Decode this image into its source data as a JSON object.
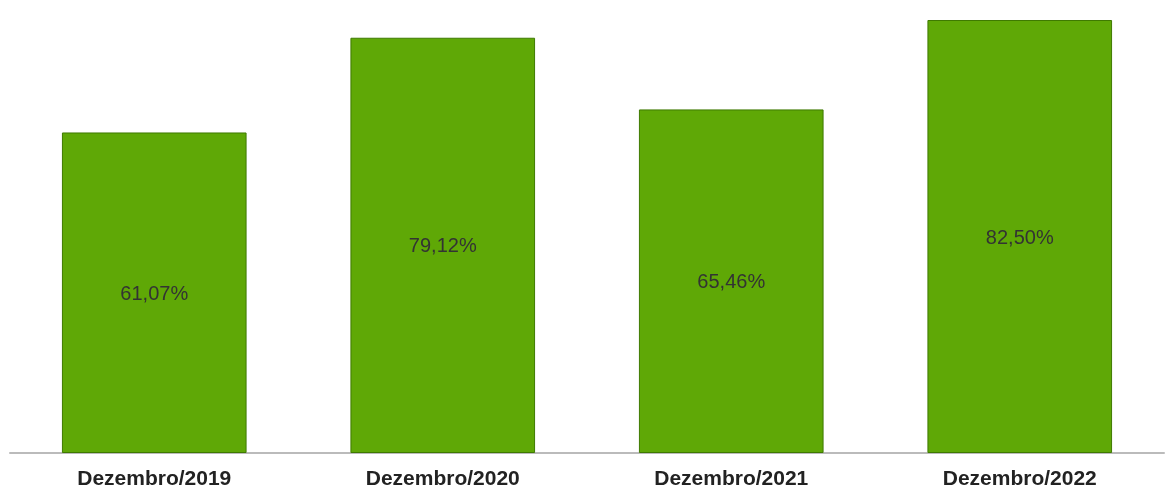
{
  "chart_data": {
    "type": "bar",
    "categories": [
      "Dezembro/2019",
      "Dezembro/2020",
      "Dezembro/2021",
      "Dezembro/2022"
    ],
    "values": [
      61.07,
      79.12,
      65.46,
      82.5
    ],
    "value_labels": [
      "61,07%",
      "79,12%",
      "65,46%",
      "82,50%"
    ],
    "color": "#5fa806",
    "grid": false
  }
}
